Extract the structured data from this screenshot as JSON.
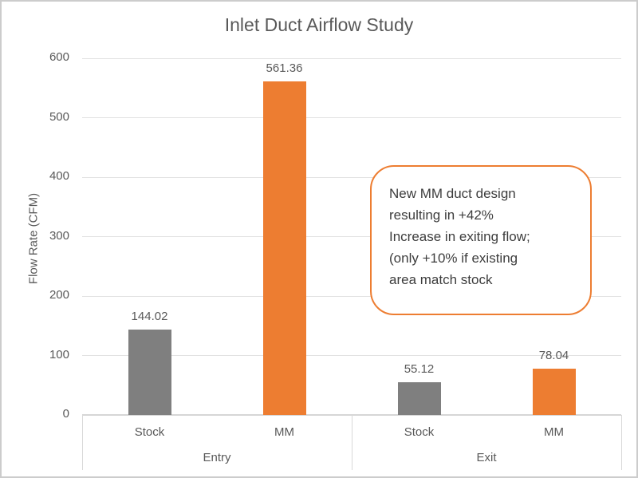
{
  "chart_data": {
    "type": "bar",
    "title": "Inlet Duct Airflow Study",
    "xlabel": "",
    "ylabel": "Flow Rate (CFM)",
    "ylim": [
      0,
      600
    ],
    "ytick_interval": 100,
    "grid": true,
    "legend": false,
    "categories": [
      "Entry",
      "Exit"
    ],
    "groups": [
      {
        "label": "Entry",
        "bars": [
          {
            "label": "Stock",
            "value": 144.02,
            "value_label": "144.02",
            "color_key": "stock"
          },
          {
            "label": "MM",
            "value": 561.36,
            "value_label": "561.36",
            "color_key": "mm"
          }
        ]
      },
      {
        "label": "Exit",
        "bars": [
          {
            "label": "Stock",
            "value": 55.12,
            "value_label": "55.12",
            "color_key": "stock"
          },
          {
            "label": "MM",
            "value": 78.04,
            "value_label": "78.04",
            "color_key": "mm"
          }
        ]
      }
    ],
    "colors": {
      "stock": "#7f7f7f",
      "mm": "#ed7d31"
    },
    "annotation": {
      "text": "New MM duct design\nresulting in +42%\nIncrease in exiting flow;\n(only +10% if existing\narea match stock",
      "border_color": "#ed7d31",
      "text_color": "#3d3d3d"
    }
  }
}
